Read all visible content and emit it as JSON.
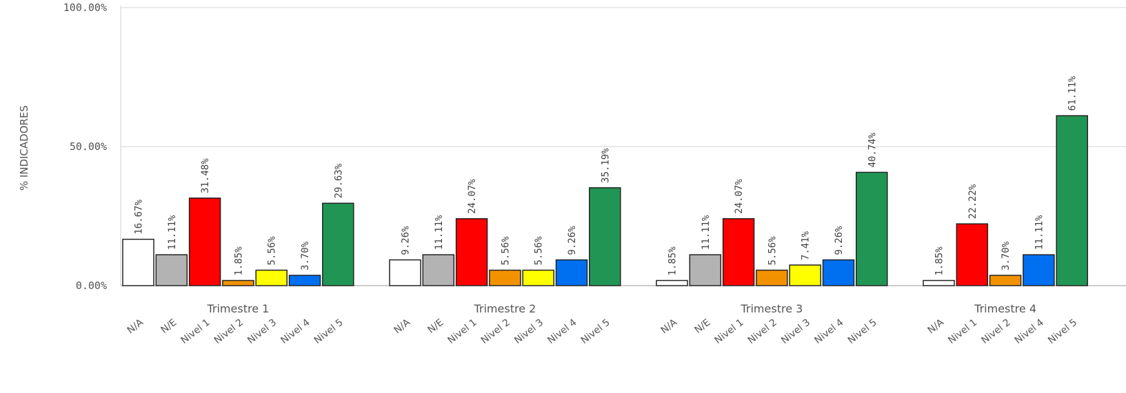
{
  "chart_data": {
    "type": "bar",
    "ylabel": "% INDICADORES",
    "yticks": [
      "0.00%",
      "50.00%",
      "100.00%"
    ],
    "ylim": [
      0,
      100
    ],
    "grid": true,
    "groups": [
      {
        "name": "Trimestre 1",
        "bars": [
          {
            "category": "N/A",
            "value": 16.67,
            "label": "16.67%"
          },
          {
            "category": "N/E",
            "value": 11.11,
            "label": "11.11%"
          },
          {
            "category": "Nivel 1",
            "value": 31.48,
            "label": "31.48%"
          },
          {
            "category": "Nivel 2",
            "value": 1.85,
            "label": "1.85%"
          },
          {
            "category": "Nivel 3",
            "value": 5.56,
            "label": "5.56%"
          },
          {
            "category": "Nivel 4",
            "value": 3.7,
            "label": "3.70%"
          },
          {
            "category": "Nivel 5",
            "value": 29.63,
            "label": "29.63%"
          }
        ]
      },
      {
        "name": "Trimestre 2",
        "bars": [
          {
            "category": "N/A",
            "value": 9.26,
            "label": "9.26%"
          },
          {
            "category": "N/E",
            "value": 11.11,
            "label": "11.11%"
          },
          {
            "category": "Nivel 1",
            "value": 24.07,
            "label": "24.07%"
          },
          {
            "category": "Nivel 2",
            "value": 5.56,
            "label": "5.56%"
          },
          {
            "category": "Nivel 3",
            "value": 5.56,
            "label": "5.56%"
          },
          {
            "category": "Nivel 4",
            "value": 9.26,
            "label": "9.26%"
          },
          {
            "category": "Nivel 5",
            "value": 35.19,
            "label": "35.19%"
          }
        ]
      },
      {
        "name": "Trimestre 3",
        "bars": [
          {
            "category": "N/A",
            "value": 1.85,
            "label": "1.85%"
          },
          {
            "category": "N/E",
            "value": 11.11,
            "label": "11.11%"
          },
          {
            "category": "Nivel 1",
            "value": 24.07,
            "label": "24.07%"
          },
          {
            "category": "Nivel 2",
            "value": 5.56,
            "label": "5.56%"
          },
          {
            "category": "Nivel 3",
            "value": 7.41,
            "label": "7.41%"
          },
          {
            "category": "Nivel 4",
            "value": 9.26,
            "label": "9.26%"
          },
          {
            "category": "Nivel 5",
            "value": 40.74,
            "label": "40.74%"
          }
        ]
      },
      {
        "name": "Trimestre 4",
        "bars": [
          {
            "category": "N/A",
            "value": 1.85,
            "label": "1.85%"
          },
          {
            "category": "Nivel 1",
            "value": 22.22,
            "label": "22.22%"
          },
          {
            "category": "Nivel 2",
            "value": 3.7,
            "label": "3.70%"
          },
          {
            "category": "Nivel 4",
            "value": 11.11,
            "label": "11.11%"
          },
          {
            "category": "Nivel 5",
            "value": 61.11,
            "label": "61.11%"
          }
        ]
      }
    ],
    "colors": {
      "N/A": "#ffffff",
      "N/E": "#b3b3b3",
      "Nivel 1": "#ff0000",
      "Nivel 2": "#f39200",
      "Nivel 3": "#ffff00",
      "Nivel 4": "#0070f0",
      "Nivel 5": "#219654"
    }
  }
}
